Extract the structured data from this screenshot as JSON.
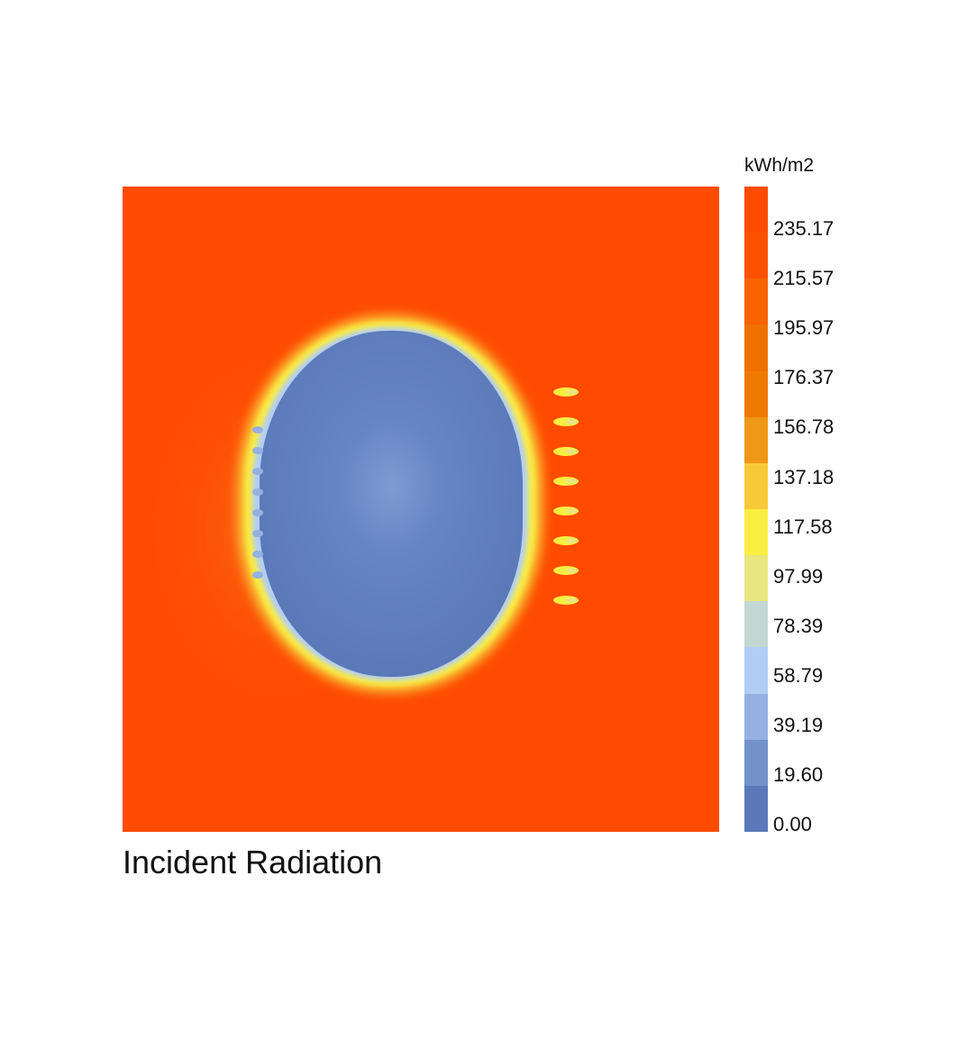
{
  "chart_data": {
    "type": "heatmap",
    "title": "Incident Radiation",
    "unit": "kWh/m2",
    "value_range": [
      0.0,
      255.0
    ],
    "legend": {
      "position": "right",
      "ticks": [
        "235.17",
        "215.57",
        "195.97",
        "176.37",
        "156.78",
        "137.18",
        "117.58",
        "97.99",
        "78.39",
        "58.79",
        "39.19",
        "19.60",
        "0.00"
      ],
      "colors": [
        "#ff4b00",
        "#fc5200",
        "#f76400",
        "#f17100",
        "#ef7a00",
        "#ef9718",
        "#f8c937",
        "#faee43",
        "#e8e67f",
        "#c3d7d3",
        "#b2cdf5",
        "#95b1e2",
        "#7391cb",
        "#5b79b8"
      ]
    },
    "field": {
      "background_value": 240,
      "core_value": 12,
      "ring_value": 120,
      "description_text": ""
    }
  }
}
